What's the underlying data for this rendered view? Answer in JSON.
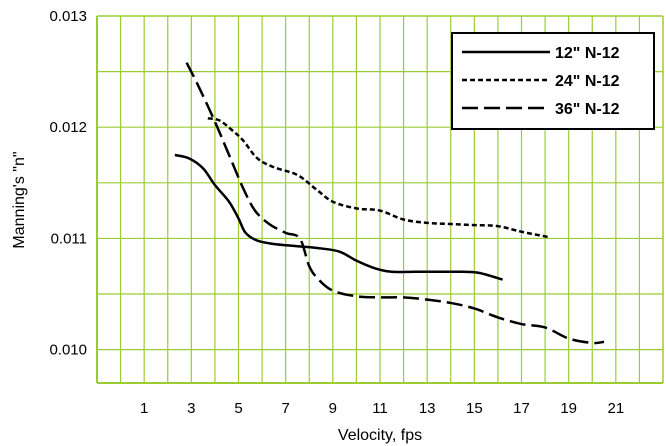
{
  "chart_data": {
    "type": "line",
    "title": "",
    "xlabel": "Velocity, fps",
    "ylabel": "Manning's \"n\"",
    "xlim": [
      -1,
      23
    ],
    "ylim": [
      0.0097,
      0.013
    ],
    "x_ticks": [
      "1",
      "3",
      "5",
      "7",
      "9",
      "11",
      "13",
      "15",
      "17",
      "19",
      "21"
    ],
    "y_ticks": [
      "0.010",
      "0.011",
      "0.012",
      "0.013"
    ],
    "grid": true,
    "grid_color": "#9ACD32",
    "legend_position": "top-right",
    "series": [
      {
        "name": "12\" N-12",
        "dash": "solid",
        "color": "#000000",
        "points": [
          [
            2.3,
            0.01175
          ],
          [
            2.9,
            0.01172
          ],
          [
            3.5,
            0.01163
          ],
          [
            4.0,
            0.01148
          ],
          [
            4.6,
            0.01133
          ],
          [
            5.0,
            0.01118
          ],
          [
            5.3,
            0.01105
          ],
          [
            5.8,
            0.01098
          ],
          [
            6.5,
            0.01095
          ],
          [
            7.5,
            0.01093
          ],
          [
            8.5,
            0.01091
          ],
          [
            9.3,
            0.01088
          ],
          [
            10.0,
            0.0108
          ],
          [
            10.8,
            0.01073
          ],
          [
            11.5,
            0.0107
          ],
          [
            12.5,
            0.0107
          ],
          [
            13.5,
            0.0107
          ],
          [
            14.5,
            0.0107
          ],
          [
            15.2,
            0.01069
          ],
          [
            16.2,
            0.01063
          ]
        ]
      },
      {
        "name": "24\" N-12",
        "dash": "short",
        "color": "#000000",
        "points": [
          [
            3.7,
            0.01208
          ],
          [
            4.2,
            0.01206
          ],
          [
            4.8,
            0.01196
          ],
          [
            5.2,
            0.01188
          ],
          [
            5.8,
            0.01172
          ],
          [
            6.5,
            0.01164
          ],
          [
            7.5,
            0.01157
          ],
          [
            8.3,
            0.01144
          ],
          [
            9.0,
            0.01133
          ],
          [
            10.0,
            0.01127
          ],
          [
            11.0,
            0.01125
          ],
          [
            12.0,
            0.01117
          ],
          [
            13.0,
            0.01114
          ],
          [
            14.0,
            0.01113
          ],
          [
            15.0,
            0.01112
          ],
          [
            16.0,
            0.01111
          ],
          [
            17.0,
            0.01106
          ],
          [
            18.2,
            0.01101
          ]
        ]
      },
      {
        "name": "36\" N-12",
        "dash": "long",
        "color": "#000000",
        "points": [
          [
            2.8,
            0.01258
          ],
          [
            3.3,
            0.01237
          ],
          [
            4.0,
            0.01205
          ],
          [
            4.6,
            0.01175
          ],
          [
            5.2,
            0.01145
          ],
          [
            5.7,
            0.01125
          ],
          [
            6.3,
            0.01113
          ],
          [
            7.0,
            0.01105
          ],
          [
            7.6,
            0.011
          ],
          [
            8.0,
            0.01075
          ],
          [
            8.4,
            0.01063
          ],
          [
            9.0,
            0.01053
          ],
          [
            10.0,
            0.01048
          ],
          [
            11.0,
            0.01047
          ],
          [
            12.0,
            0.01047
          ],
          [
            13.0,
            0.01045
          ],
          [
            14.0,
            0.01042
          ],
          [
            15.0,
            0.01037
          ],
          [
            16.0,
            0.01029
          ],
          [
            17.0,
            0.01023
          ],
          [
            18.0,
            0.0102
          ],
          [
            19.0,
            0.0101
          ],
          [
            20.0,
            0.01006
          ],
          [
            20.5,
            0.01007
          ]
        ]
      }
    ]
  }
}
